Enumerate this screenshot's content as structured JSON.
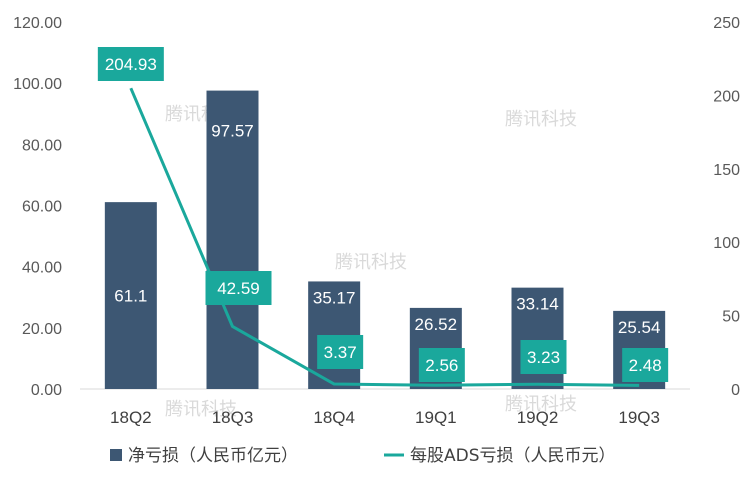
{
  "chart_data": {
    "type": "bar",
    "categories": [
      "18Q2",
      "18Q3",
      "18Q4",
      "19Q1",
      "19Q2",
      "19Q3"
    ],
    "series": [
      {
        "name": "净亏损（人民币亿元）",
        "type": "bar",
        "axis": "left",
        "values": [
          61.1,
          97.57,
          35.17,
          26.52,
          33.14,
          25.54
        ],
        "labels": [
          "61.1",
          "97.57",
          "35.17",
          "26.52",
          "33.14",
          "25.54"
        ]
      },
      {
        "name": "每股ADS亏损（人民币元）",
        "type": "line",
        "axis": "right",
        "values": [
          204.93,
          42.59,
          3.37,
          2.56,
          3.23,
          2.48
        ],
        "labels": [
          "204.93",
          "42.59",
          "3.37",
          "2.56",
          "3.23",
          "2.48"
        ]
      }
    ],
    "y_left": {
      "ylim": [
        0,
        120
      ],
      "ticks": [
        "0.00",
        "20.00",
        "40.00",
        "60.00",
        "80.00",
        "100.00",
        "120.00"
      ]
    },
    "y_right": {
      "ylim": [
        0,
        250
      ],
      "ticks": [
        "0",
        "50",
        "100",
        "150",
        "200",
        "250"
      ]
    },
    "grid": false,
    "legend_position": "bottom",
    "colors": {
      "bar": "#3d5773",
      "line": "#1aa89c"
    },
    "watermark": "腾讯科技"
  }
}
